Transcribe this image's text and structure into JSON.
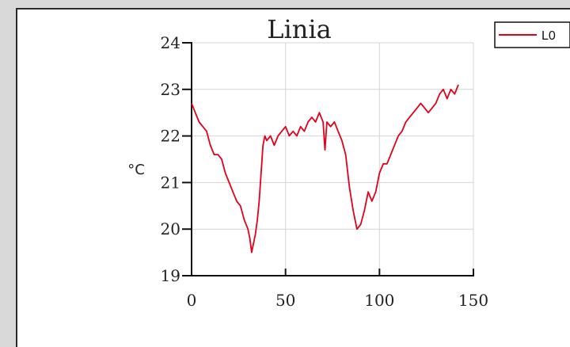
{
  "chart_data": {
    "type": "line",
    "title": "Linia",
    "xlabel": "",
    "ylabel": "°C",
    "xlim": [
      0,
      150
    ],
    "ylim": [
      19,
      24
    ],
    "xticks": [
      0,
      50,
      100,
      150
    ],
    "yticks": [
      19,
      20,
      21,
      22,
      23,
      24
    ],
    "grid": true,
    "legend": "top-right",
    "series": [
      {
        "name": "L0",
        "color": "#e3001b",
        "x": [
          0,
          2,
          4,
          6,
          8,
          10,
          12,
          14,
          16,
          18,
          20,
          22,
          24,
          26,
          28,
          30,
          31,
          32,
          33,
          34,
          35,
          36,
          37,
          38,
          39,
          40,
          42,
          44,
          46,
          48,
          50,
          52,
          54,
          56,
          58,
          60,
          62,
          64,
          66,
          68,
          70,
          71,
          72,
          74,
          76,
          78,
          80,
          82,
          84,
          86,
          88,
          90,
          92,
          94,
          96,
          98,
          100,
          102,
          104,
          106,
          108,
          110,
          112,
          114,
          116,
          118,
          120,
          122,
          124,
          126,
          128,
          130,
          132,
          134,
          136,
          138,
          140,
          142
        ],
        "y": [
          22.7,
          22.5,
          22.3,
          22.2,
          22.1,
          21.8,
          21.6,
          21.6,
          21.5,
          21.2,
          21.0,
          20.8,
          20.6,
          20.5,
          20.2,
          20.0,
          19.8,
          19.5,
          19.7,
          19.9,
          20.2,
          20.6,
          21.2,
          21.8,
          22.0,
          21.9,
          22.0,
          21.8,
          22.0,
          22.1,
          22.2,
          22.0,
          22.1,
          22.0,
          22.2,
          22.1,
          22.3,
          22.4,
          22.3,
          22.5,
          22.3,
          21.7,
          22.3,
          22.2,
          22.3,
          22.1,
          21.9,
          21.6,
          20.9,
          20.4,
          20.0,
          20.1,
          20.4,
          20.8,
          20.6,
          20.8,
          21.2,
          21.4,
          21.4,
          21.6,
          21.8,
          22.0,
          22.1,
          22.3,
          22.4,
          22.5,
          22.6,
          22.7,
          22.6,
          22.5,
          22.6,
          22.7,
          22.9,
          23.0,
          22.8,
          23.0,
          22.9,
          23.1
        ]
      }
    ]
  }
}
